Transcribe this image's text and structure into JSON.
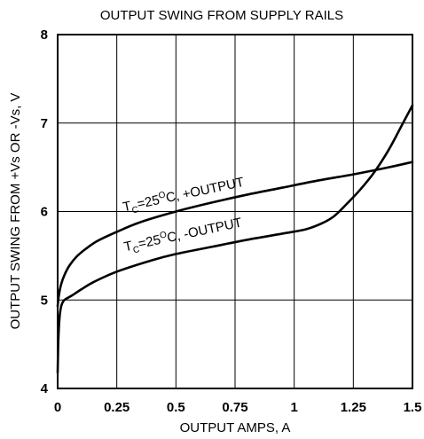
{
  "chart_data": {
    "type": "line",
    "title": "OUTPUT SWING FROM SUPPLY RAILS",
    "xlabel": "OUTPUT AMPS, A",
    "ylabel": "OUTPUT SWING FROM +Vs OR -Vs, V",
    "xlim": [
      0,
      1.5
    ],
    "ylim": [
      4,
      8
    ],
    "x_ticks": [
      0,
      0.25,
      0.5,
      0.75,
      1,
      1.25,
      1.5
    ],
    "x_tick_labels": [
      "0",
      "0.25",
      "0.5",
      "0.75",
      "1",
      "1.25",
      "1.5"
    ],
    "y_ticks": [
      4,
      5,
      6,
      7,
      8
    ],
    "y_tick_labels": [
      "4",
      "5",
      "6",
      "7",
      "8"
    ],
    "grid": true,
    "series": [
      {
        "name": "+OUTPUT",
        "label": {
          "t": "T",
          "sub": "C",
          "eq": "=25",
          "sup": "O",
          "rest": "C, +OUTPUT"
        },
        "x": [
          0,
          0.005,
          0.015,
          0.03,
          0.05,
          0.08,
          0.12,
          0.17,
          0.25,
          0.35,
          0.5,
          0.65,
          0.8,
          0.95,
          1.1,
          1.25,
          1.4,
          1.5
        ],
        "y": [
          4.93,
          5.05,
          5.18,
          5.29,
          5.39,
          5.49,
          5.58,
          5.67,
          5.77,
          5.88,
          6.0,
          6.1,
          6.19,
          6.27,
          6.35,
          6.42,
          6.5,
          6.56
        ]
      },
      {
        "name": "-OUTPUT",
        "label": {
          "t": "T",
          "sub": "C",
          "eq": "=25",
          "sup": "O",
          "rest": "C, -OUTPUT"
        },
        "x": [
          0,
          0.003,
          0.008,
          0.015,
          0.025,
          0.04,
          0.06,
          0.1,
          0.15,
          0.25,
          0.4,
          0.5,
          0.65,
          0.8,
          0.95,
          1.05,
          1.12,
          1.17,
          1.22,
          1.28,
          1.34,
          1.4,
          1.46,
          1.5
        ],
        "y": [
          4.18,
          4.55,
          4.8,
          4.93,
          4.99,
          5.02,
          5.05,
          5.12,
          5.2,
          5.32,
          5.45,
          5.52,
          5.6,
          5.68,
          5.75,
          5.8,
          5.87,
          5.95,
          6.08,
          6.25,
          6.45,
          6.7,
          7.0,
          7.2
        ]
      }
    ]
  }
}
